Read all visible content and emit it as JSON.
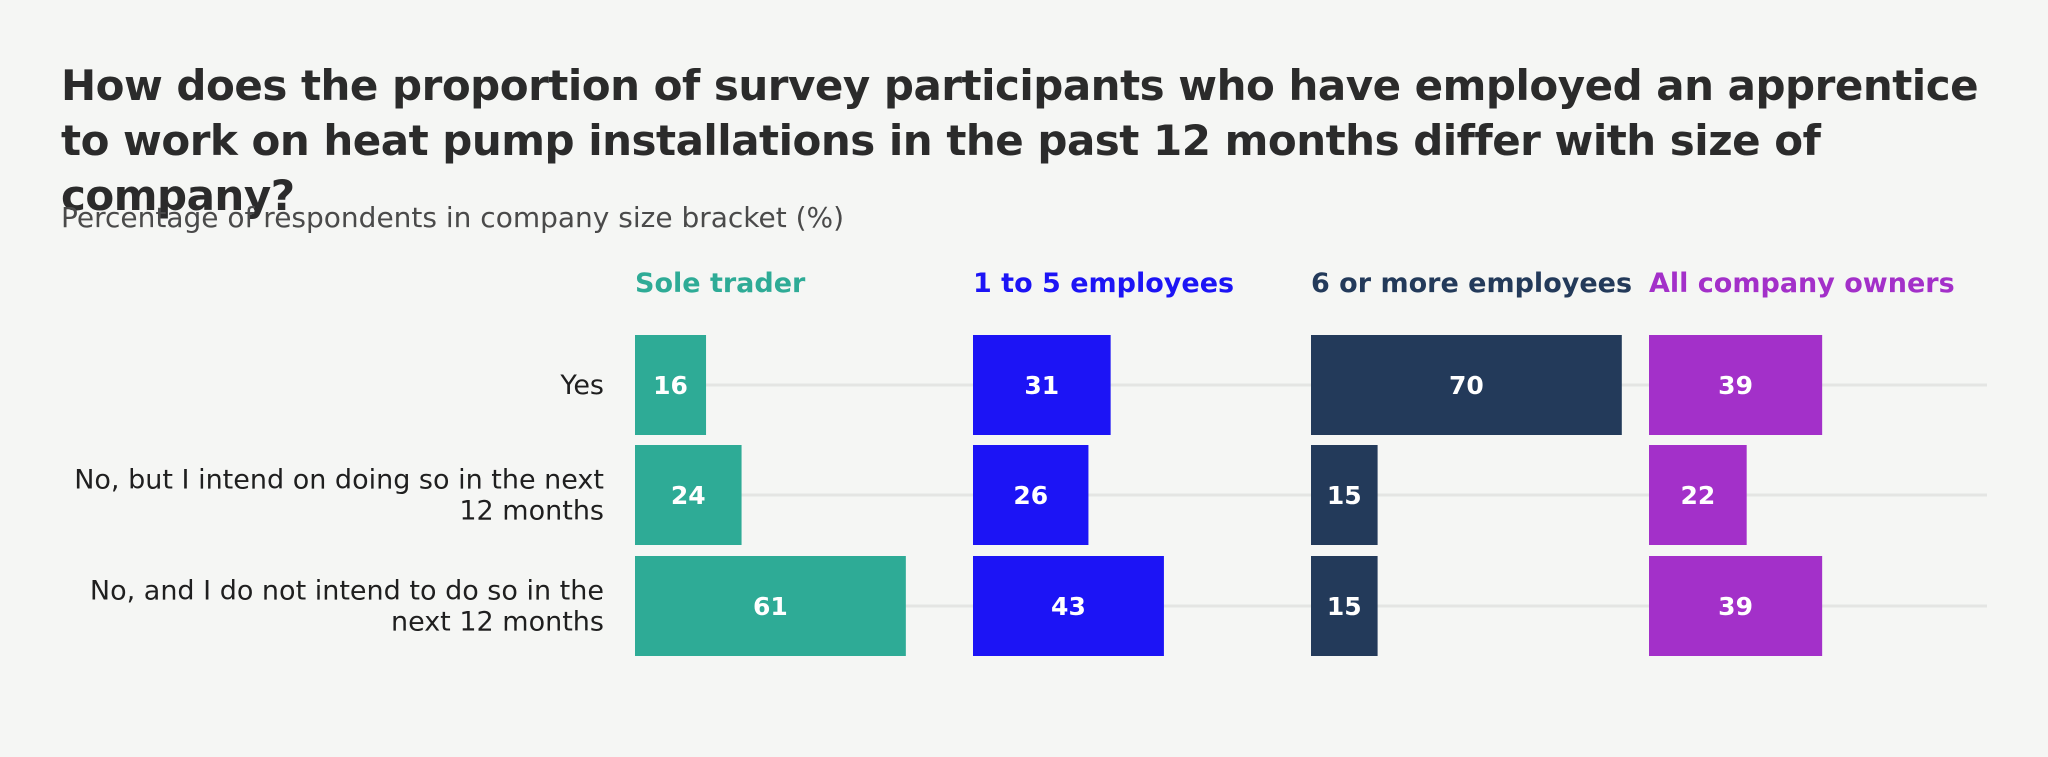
{
  "title": "How does the proportion of survey participants who have employed an apprentice to work on heat pump installations in the past 12 months differ with size of company?",
  "subtitle": "Percentage of respondents in company size bracket (%)",
  "chart_data": {
    "type": "bar",
    "orientation": "horizontal",
    "layout": "small-multiples",
    "categories": [
      [
        "Yes"
      ],
      [
        "No, but I intend on doing so in the next",
        "12 months"
      ],
      [
        "No, and I do not intend to do so in the",
        "next 12 months"
      ]
    ],
    "series": [
      {
        "name": "Sole trader",
        "color": "#2eab96",
        "values": [
          16,
          24,
          61
        ]
      },
      {
        "name": "1 to 5 employees",
        "color": "#1c14f5",
        "values": [
          31,
          26,
          43
        ]
      },
      {
        "name": "6 or more employees",
        "color": "#233a5a",
        "values": [
          70,
          15,
          15
        ]
      },
      {
        "name": "All company owners",
        "color": "#a330c9",
        "values": [
          39,
          22,
          39
        ]
      }
    ],
    "xlim": [
      0,
      100
    ],
    "grid": true
  }
}
